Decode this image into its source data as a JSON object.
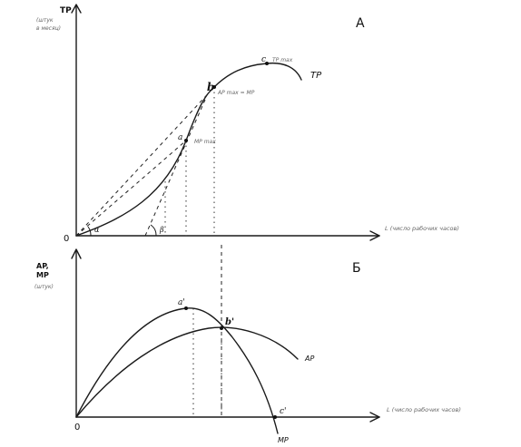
{
  "panels": {
    "top": {
      "letter": "А",
      "y_axis_label": "TP",
      "y_axis_sublabel": [
        "(штук",
        "в месяц)"
      ],
      "x_axis_label": "L (число рабочих часов)",
      "origin": "0",
      "curve_label": "TP",
      "points": {
        "a": {
          "letter": "a",
          "note": "MP max"
        },
        "b": {
          "letter": "b",
          "note": "AP max = MP"
        },
        "c": {
          "letter": "c",
          "note": "TP max"
        }
      },
      "angle_labels": [
        "α",
        "β"
      ]
    },
    "bottom": {
      "letter": "Б",
      "y_axis_label": [
        "AP,",
        "MP"
      ],
      "y_axis_sublabel": "(штук)",
      "x_axis_label": "L (число рабочих часов)",
      "origin": "0",
      "curve_labels": {
        "ap": "AP",
        "mp": "MP"
      },
      "points": {
        "a1": "a'",
        "b1": "b'",
        "c1": "c'"
      }
    }
  }
}
